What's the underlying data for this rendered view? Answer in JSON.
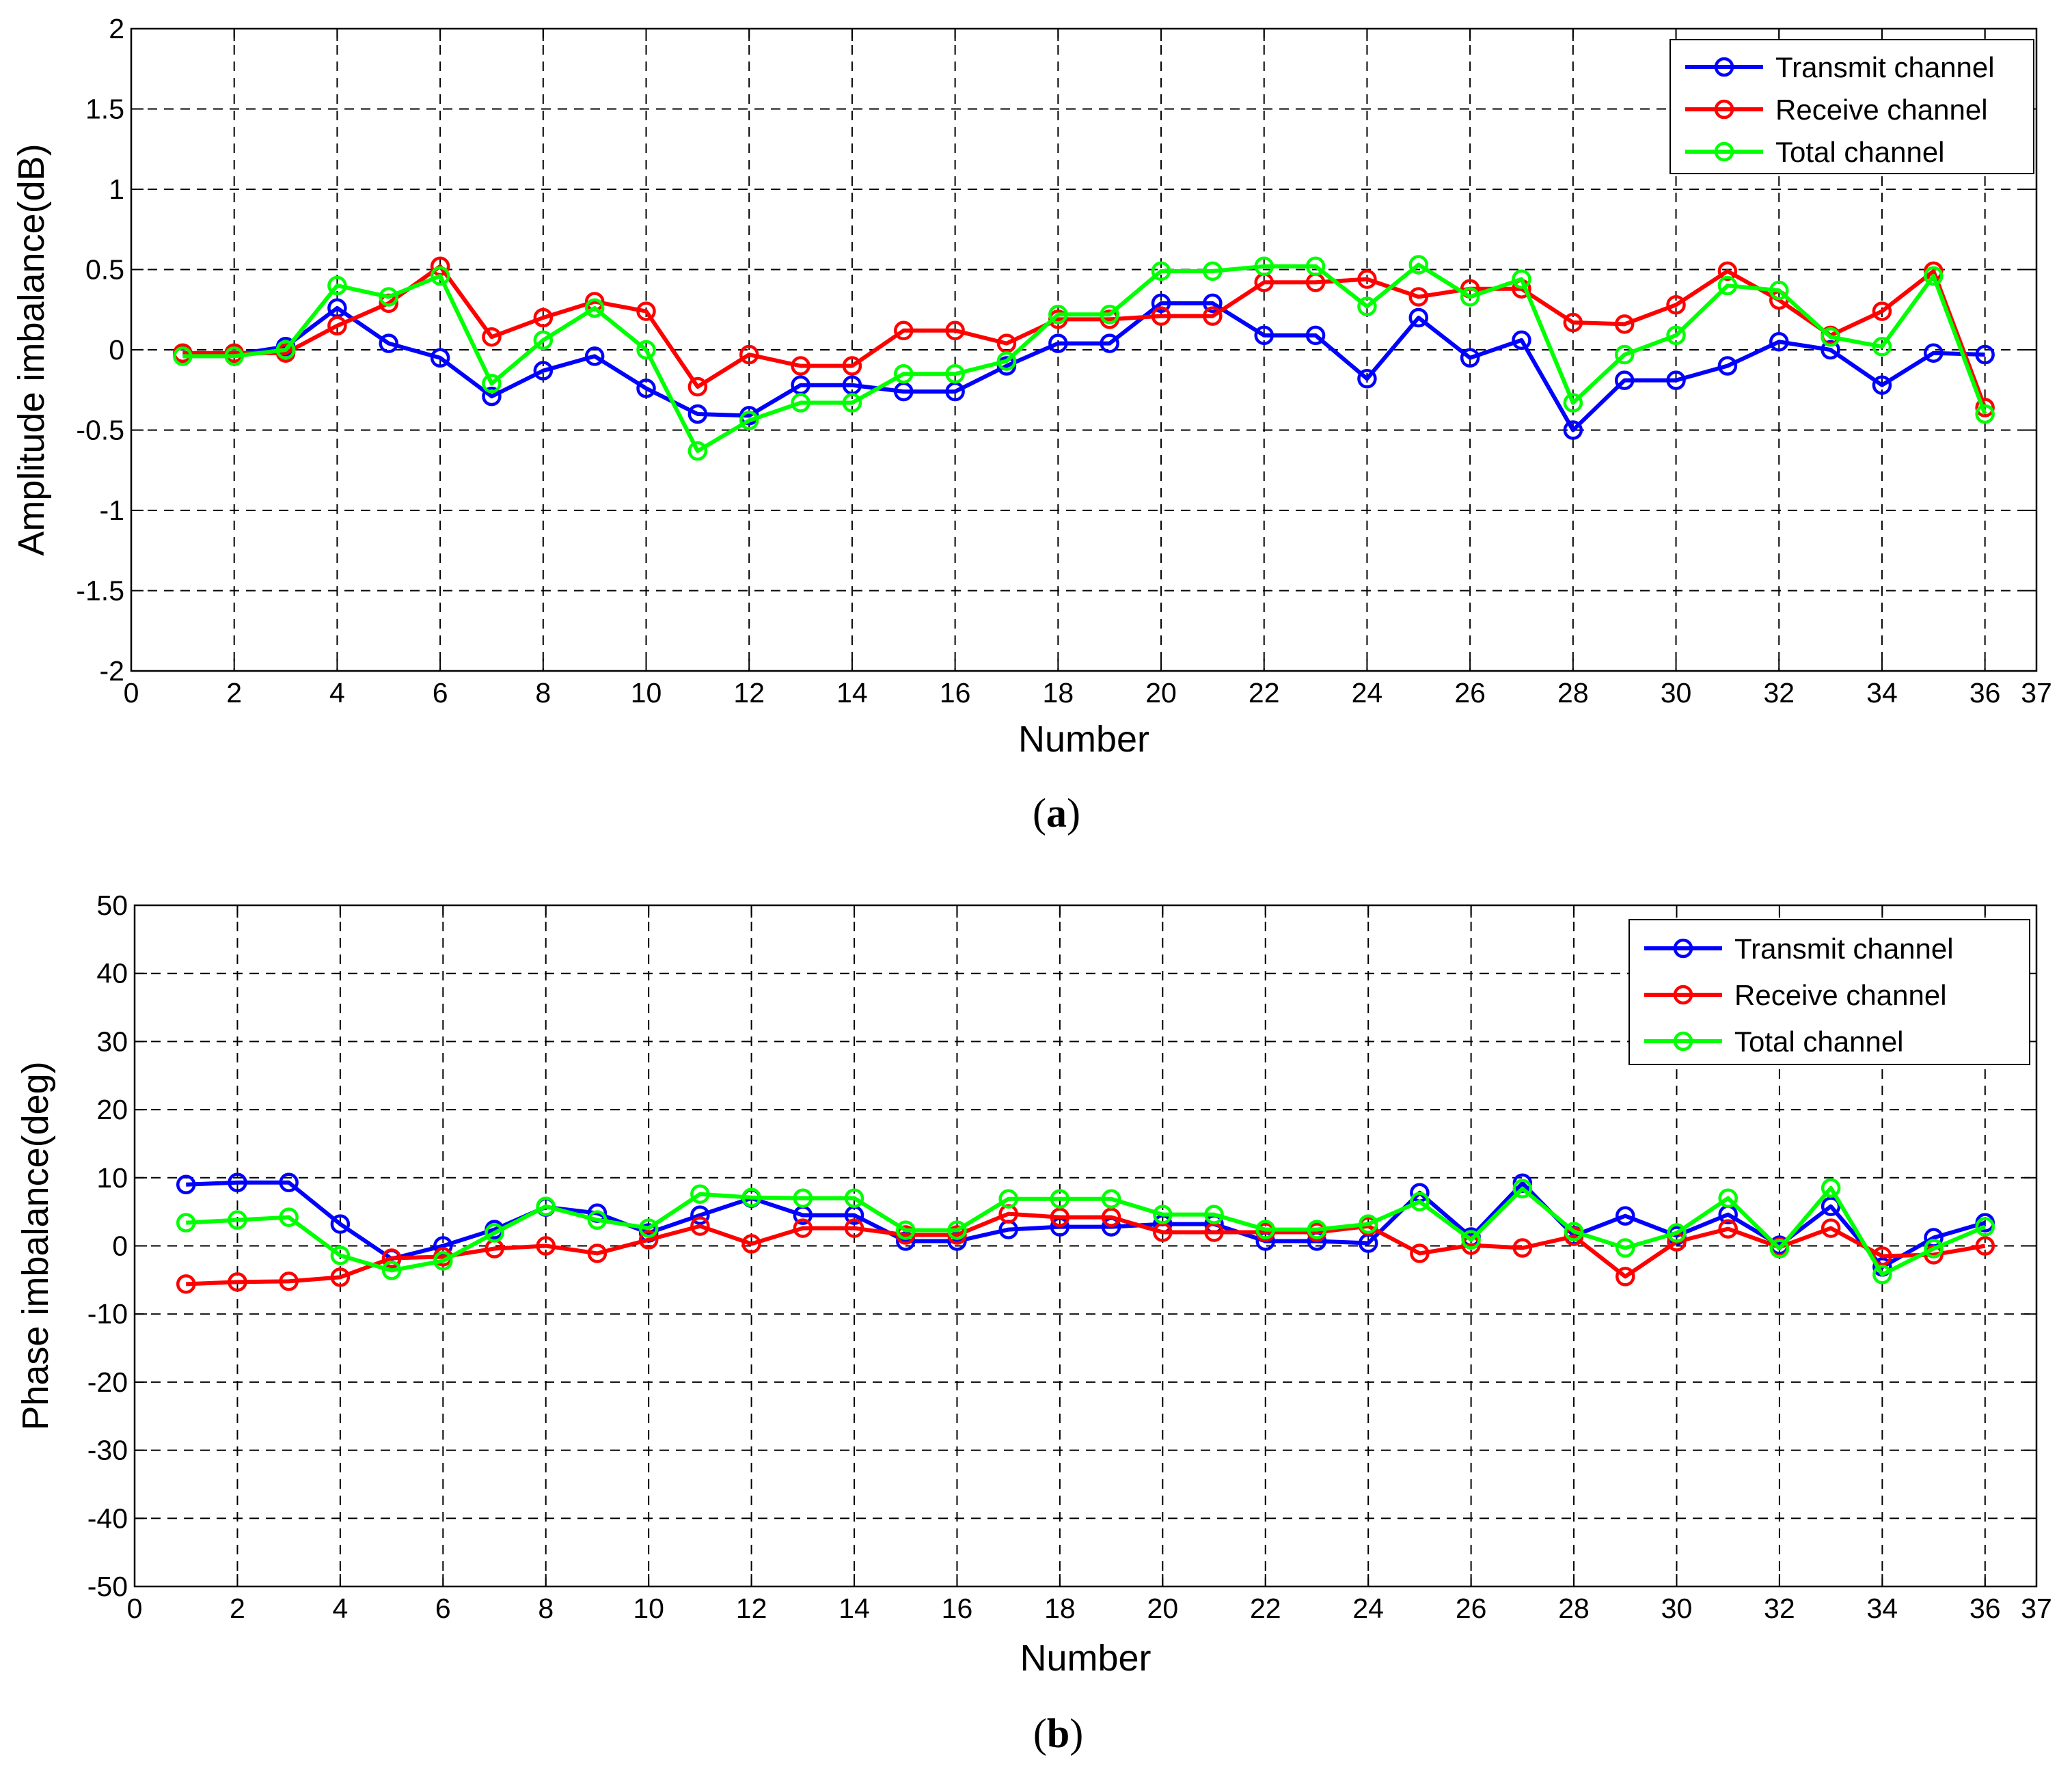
{
  "chart_data": [
    {
      "type": "line",
      "panel": "a",
      "caption_letter": "a",
      "caption_open": "(",
      "caption_close": ")",
      "xlabel": "Number",
      "ylabel": "Amplitude imbalance(dB)",
      "xlim": [
        0,
        37
      ],
      "ylim": [
        -2,
        2
      ],
      "xticks": [
        0,
        2,
        4,
        6,
        8,
        10,
        12,
        14,
        16,
        18,
        20,
        22,
        24,
        26,
        28,
        30,
        32,
        34,
        36,
        37
      ],
      "yticks": [
        -2,
        -1.5,
        -1,
        -0.5,
        0,
        0.5,
        1,
        1.5,
        2
      ],
      "grid": true,
      "legend_position": "top-right",
      "x": [
        1,
        2,
        3,
        4,
        5,
        6,
        7,
        8,
        9,
        10,
        11,
        12,
        13,
        14,
        15,
        16,
        17,
        18,
        19,
        20,
        21,
        22,
        23,
        24,
        25,
        26,
        27,
        28,
        29,
        30,
        31,
        32,
        33,
        34,
        35,
        36
      ],
      "series": [
        {
          "name": "Transmit channel",
          "color": "#0000ff",
          "values": [
            -0.03,
            -0.03,
            0.02,
            0.26,
            0.04,
            -0.05,
            -0.29,
            -0.13,
            -0.04,
            -0.24,
            -0.4,
            -0.41,
            -0.22,
            -0.22,
            -0.26,
            -0.26,
            -0.1,
            0.04,
            0.04,
            0.29,
            0.29,
            0.09,
            0.09,
            -0.18,
            0.2,
            -0.05,
            0.06,
            -0.5,
            -0.19,
            -0.19,
            -0.1,
            0.05,
            0.0,
            -0.22,
            -0.02,
            -0.03
          ]
        },
        {
          "name": "Receive channel",
          "color": "#ff0000",
          "values": [
            -0.02,
            -0.02,
            -0.02,
            0.15,
            0.29,
            0.52,
            0.08,
            0.2,
            0.3,
            0.24,
            -0.23,
            -0.03,
            -0.1,
            -0.1,
            0.12,
            0.12,
            0.04,
            0.19,
            0.19,
            0.21,
            0.21,
            0.42,
            0.42,
            0.44,
            0.33,
            0.38,
            0.38,
            0.17,
            0.16,
            0.28,
            0.49,
            0.31,
            0.09,
            0.24,
            0.49,
            -0.36
          ]
        },
        {
          "name": "Total channel",
          "color": "#00ff00",
          "values": [
            -0.04,
            -0.04,
            0.0,
            0.4,
            0.33,
            0.46,
            -0.21,
            0.06,
            0.26,
            0.0,
            -0.63,
            -0.44,
            -0.33,
            -0.33,
            -0.15,
            -0.15,
            -0.07,
            0.22,
            0.22,
            0.49,
            0.49,
            0.52,
            0.52,
            0.27,
            0.53,
            0.33,
            0.44,
            -0.33,
            -0.03,
            0.09,
            0.4,
            0.37,
            0.08,
            0.02,
            0.46,
            -0.4
          ]
        }
      ]
    },
    {
      "type": "line",
      "panel": "b",
      "caption_letter": "b",
      "caption_open": "(",
      "caption_close": ")",
      "xlabel": "Number",
      "ylabel": "Phase imbalance(deg)",
      "xlim": [
        0,
        37
      ],
      "ylim": [
        -50,
        50
      ],
      "xticks": [
        0,
        2,
        4,
        6,
        8,
        10,
        12,
        14,
        16,
        18,
        20,
        22,
        24,
        26,
        28,
        30,
        32,
        34,
        36,
        37
      ],
      "yticks": [
        -50,
        -40,
        -30,
        -20,
        -10,
        0,
        10,
        20,
        30,
        40,
        50
      ],
      "grid": true,
      "legend_position": "top-right",
      "x": [
        1,
        2,
        3,
        4,
        5,
        6,
        7,
        8,
        9,
        10,
        11,
        12,
        13,
        14,
        15,
        16,
        17,
        18,
        19,
        20,
        21,
        22,
        23,
        24,
        25,
        26,
        27,
        28,
        29,
        30,
        31,
        32,
        33,
        34,
        35,
        36
      ],
      "series": [
        {
          "name": "Transmit channel",
          "color": "#0000ff",
          "values": [
            9.0,
            9.3,
            9.3,
            3.2,
            -1.9,
            0.0,
            2.4,
            5.7,
            4.8,
            1.9,
            4.5,
            7.0,
            4.5,
            4.5,
            0.7,
            0.7,
            2.4,
            2.8,
            2.8,
            3.2,
            3.2,
            0.7,
            0.7,
            0.4,
            7.8,
            1.3,
            9.2,
            1.5,
            4.4,
            1.5,
            4.6,
            0.1,
            5.8,
            -3.1,
            1.2,
            3.4
          ]
        },
        {
          "name": "Receive channel",
          "color": "#ff0000",
          "values": [
            -5.6,
            -5.3,
            -5.2,
            -4.6,
            -1.8,
            -1.6,
            -0.4,
            0.0,
            -1.1,
            0.9,
            2.9,
            0.3,
            2.6,
            2.6,
            1.6,
            1.6,
            4.7,
            4.2,
            4.2,
            2.0,
            2.0,
            2.0,
            2.0,
            2.9,
            -1.1,
            0.1,
            -0.3,
            1.4,
            -4.5,
            0.6,
            2.5,
            -0.2,
            2.6,
            -1.5,
            -1.3,
            0.0
          ]
        },
        {
          "name": "Total channel",
          "color": "#00ff00",
          "values": [
            3.4,
            3.8,
            4.2,
            -1.4,
            -3.6,
            -2.2,
            1.9,
            5.8,
            3.8,
            2.6,
            7.6,
            7.1,
            7.0,
            7.0,
            2.3,
            2.3,
            6.9,
            6.9,
            6.9,
            4.6,
            4.6,
            2.4,
            2.4,
            3.2,
            6.5,
            0.9,
            8.4,
            2.1,
            -0.3,
            1.9,
            7.0,
            -0.4,
            8.5,
            -4.2,
            -0.4,
            2.8
          ]
        }
      ]
    }
  ]
}
